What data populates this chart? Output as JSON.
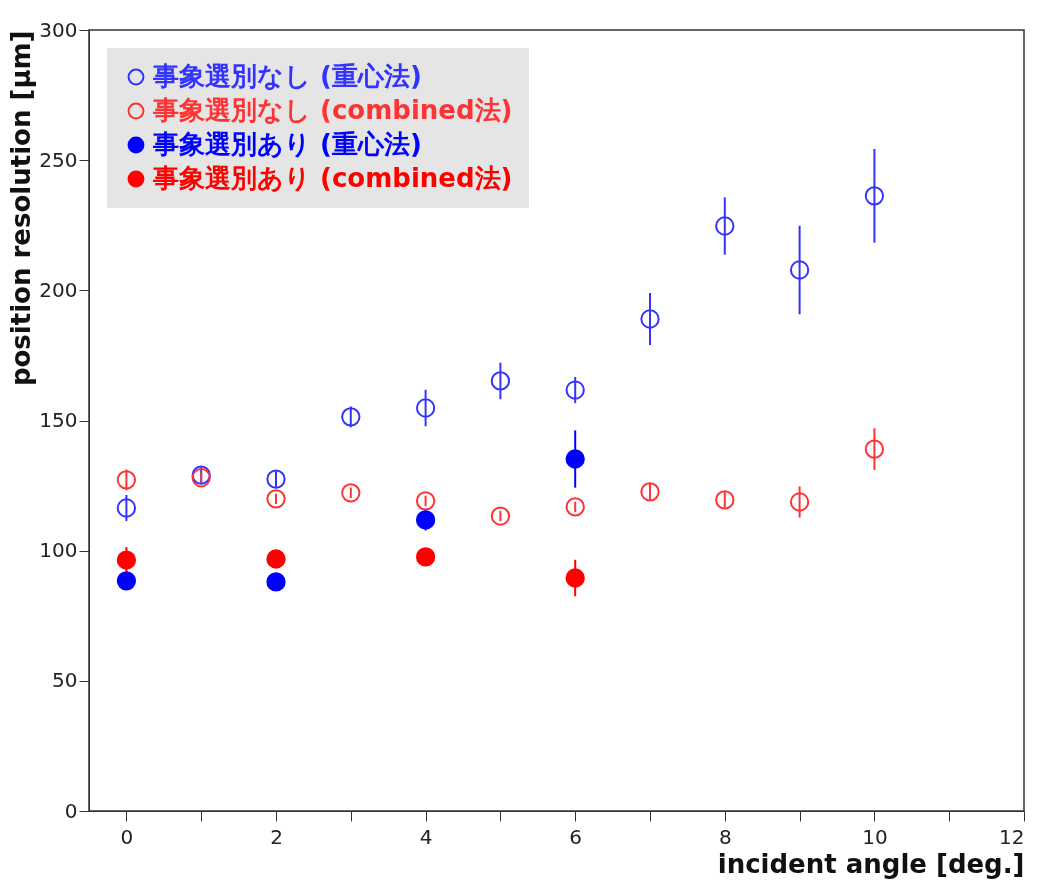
{
  "chart_data": {
    "type": "scatter",
    "xlabel": "incident angle [deg.]",
    "ylabel": "position resolution [μm]",
    "xlim": [
      -0.5,
      12
    ],
    "xticks": [
      0,
      {
        "value": 1,
        "label": null
      },
      2,
      {
        "value": 3,
        "label": null
      },
      4,
      {
        "value": 5,
        "label": null
      },
      6,
      {
        "value": 7,
        "label": null
      },
      8,
      {
        "value": 9,
        "label": null
      },
      10,
      {
        "value": 11,
        "label": null
      },
      12
    ],
    "ylim": [
      0,
      300
    ],
    "yticks": [
      0,
      50,
      100,
      150,
      200,
      250,
      300
    ],
    "grid": false,
    "legend": "top left",
    "marker": "circle",
    "series": [
      {
        "name": "事象選別なし (重心法)",
        "color": "#3333ff",
        "x": [
          0,
          1,
          2,
          3,
          4,
          5,
          6,
          7,
          8,
          9,
          10
        ],
        "values": [
          116.4,
          129,
          127.5,
          151.4,
          154.8,
          165.2,
          161.7,
          189,
          224.7,
          207.8,
          236.3
        ],
        "errors": [
          5,
          3,
          3,
          4,
          7,
          7,
          5,
          10,
          11,
          17,
          18
        ]
      },
      {
        "name": "事象選別なし (combined法)",
        "color": "#ff3333",
        "x": [
          0,
          1,
          2,
          3,
          4,
          5,
          6,
          7,
          8,
          9,
          10
        ],
        "values": [
          127.2,
          128,
          119.9,
          122.2,
          119.1,
          113.3,
          116.8,
          122.6,
          119.5,
          118.7,
          139
        ],
        "errors": [
          4,
          2,
          2,
          2,
          2,
          2,
          2,
          3,
          3,
          6,
          8
        ]
      },
      {
        "name": "事象選別あり (重心法)",
        "color": "#0000ff",
        "x": [
          0,
          2,
          4,
          6
        ],
        "values": [
          88.4,
          88,
          111.8,
          135.2
        ],
        "errors": [
          2,
          2,
          4,
          11
        ]
      },
      {
        "name": "事象選別あり (combined法)",
        "color": "#ff0000",
        "x": [
          0,
          2,
          4,
          6
        ],
        "values": [
          96.4,
          96.8,
          97.6,
          89.5
        ],
        "errors": [
          5,
          2,
          3,
          7
        ]
      }
    ]
  }
}
